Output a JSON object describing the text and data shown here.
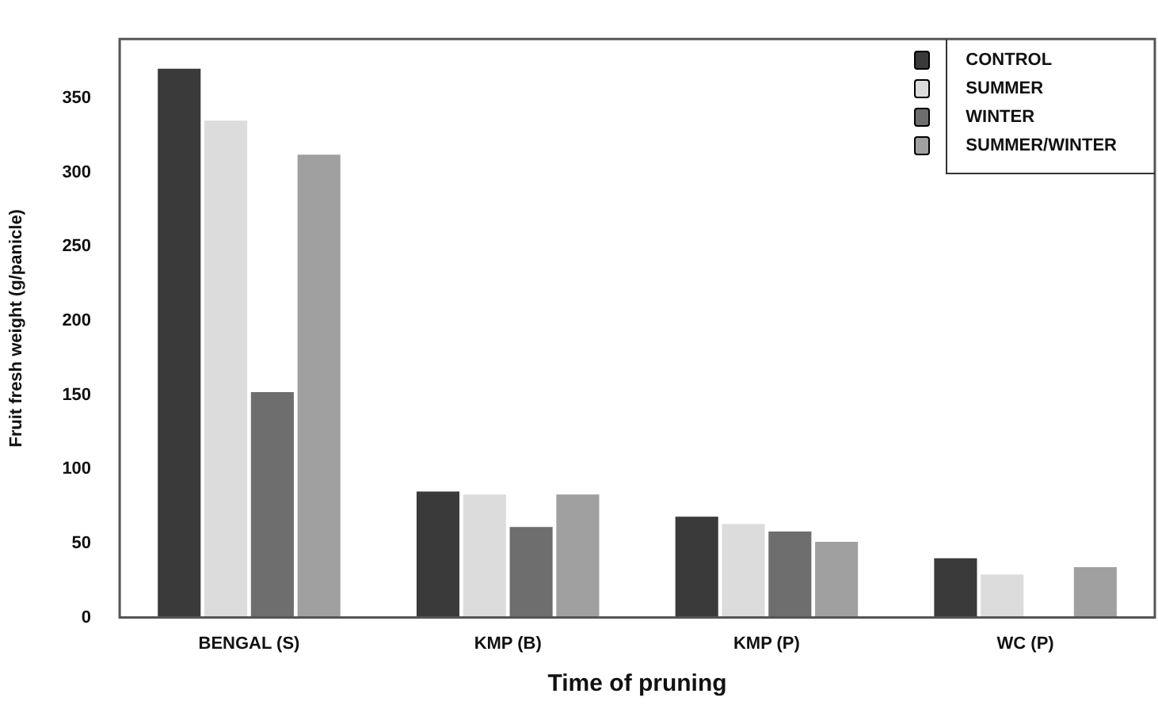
{
  "chart_data": {
    "type": "bar",
    "xlabel": "Time of pruning",
    "ylabel": "Fruit fresh weight (g/panicle)",
    "categories": [
      "BENGAL (S)",
      "KMP (B)",
      "KMP (P)",
      "WC (P)"
    ],
    "series": [
      {
        "name": "CONTROL",
        "color": "#3a3a3a",
        "values": [
          370,
          85,
          68,
          40
        ]
      },
      {
        "name": "SUMMER",
        "color": "#dcdcdc",
        "values": [
          335,
          83,
          63,
          29
        ]
      },
      {
        "name": "WINTER",
        "color": "#6e6e6e",
        "values": [
          152,
          61,
          58,
          null
        ]
      },
      {
        "name": "SUMMER/WINTER",
        "color": "#a0a0a0",
        "values": [
          312,
          83,
          51,
          34
        ]
      }
    ],
    "ylim": [
      0,
      390
    ],
    "yticks": [
      0,
      50,
      100,
      150,
      200,
      250,
      300,
      350
    ],
    "grid": false,
    "legend": "top right"
  }
}
